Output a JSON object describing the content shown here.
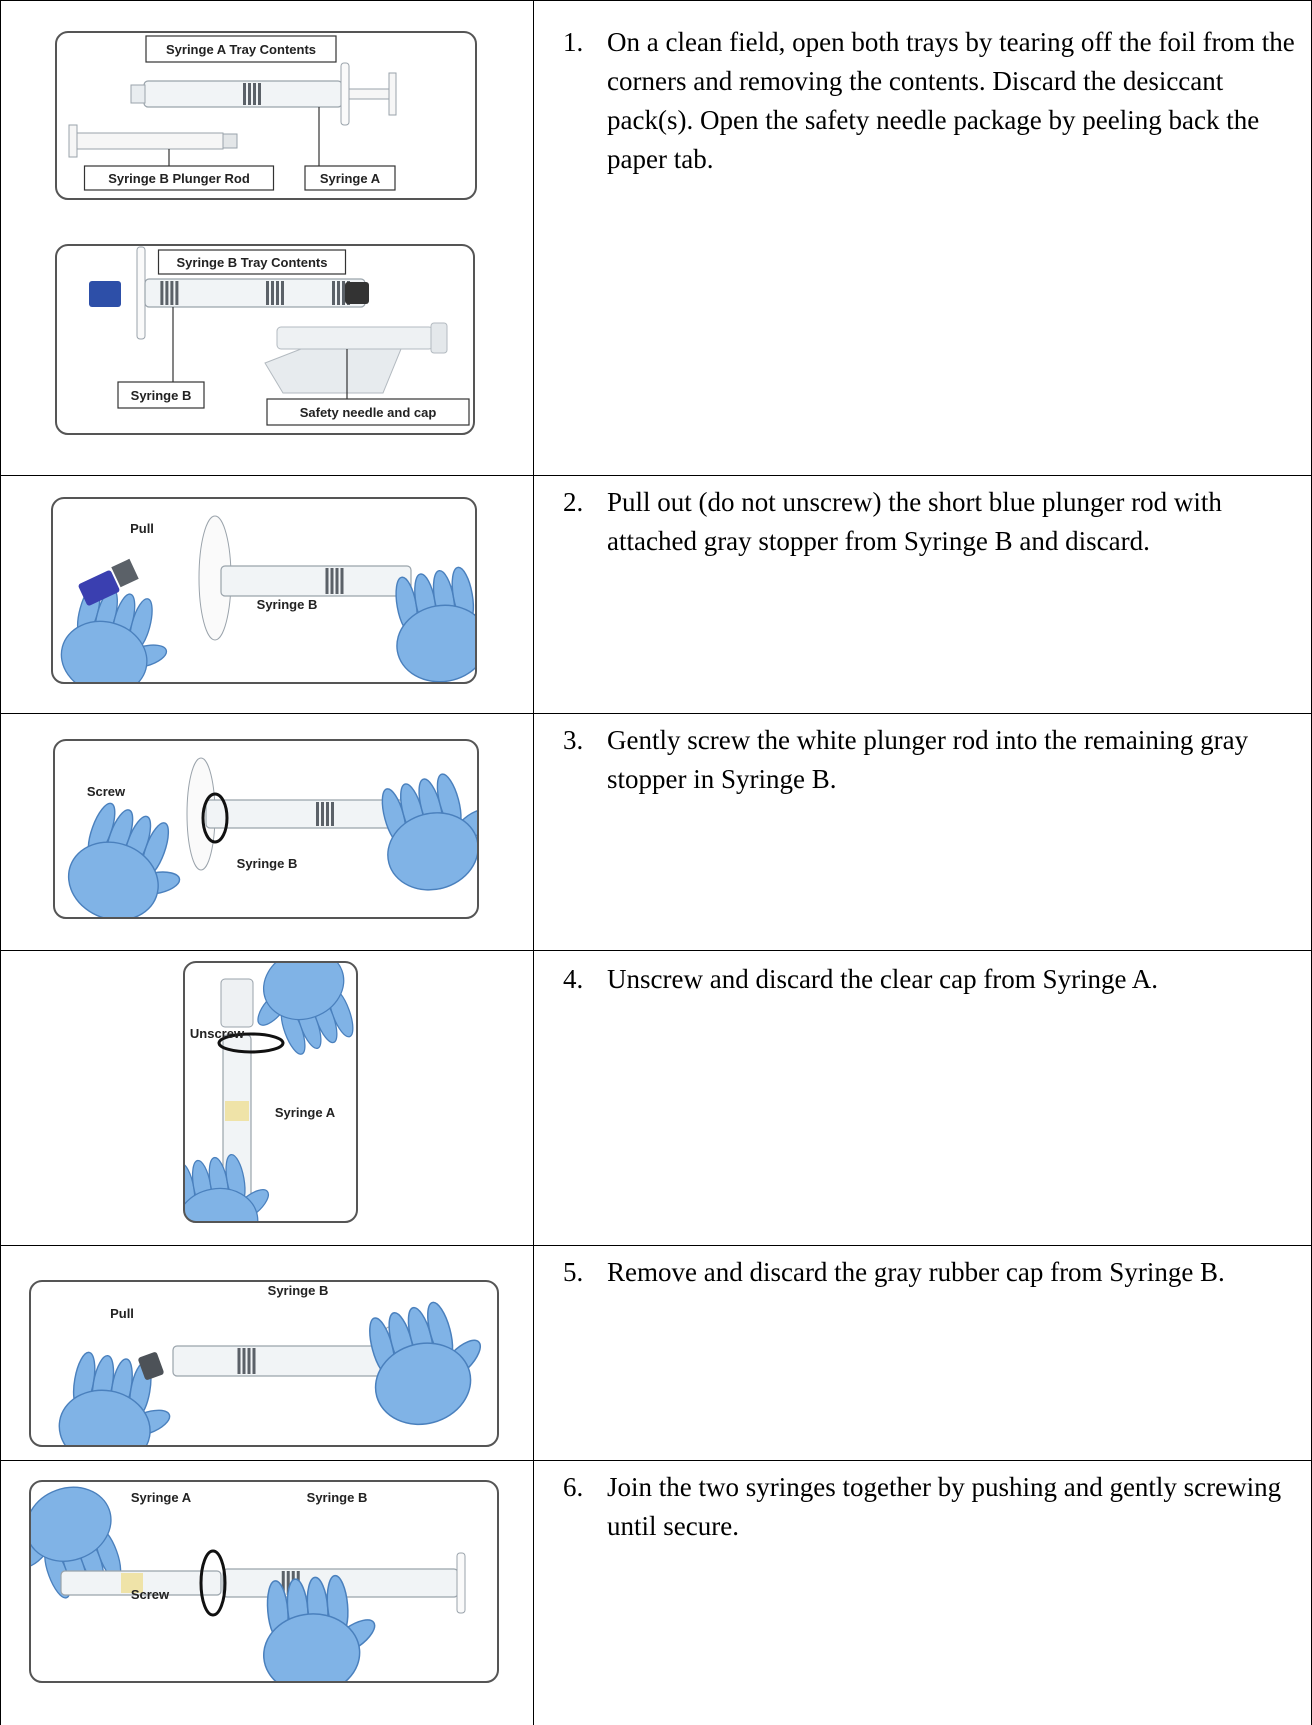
{
  "steps": [
    {
      "number": "1.",
      "text": "On a clean field, open both trays by tearing off the foil from the corners and removing the contents. Discard the desiccant pack(s). Open the safety needle package by peeling back the paper tab.",
      "image_labels": [
        "Syringe A Tray Contents",
        "Syringe B Plunger Rod",
        "Syringe A",
        "Syringe B Tray Contents",
        "Syringe B",
        "Safety needle and cap"
      ]
    },
    {
      "number": "2.",
      "text": "Pull out (do not unscrew) the short blue plunger rod with attached gray stopper from Syringe B and discard.",
      "image_labels": [
        "Pull",
        "Syringe B"
      ]
    },
    {
      "number": "3.",
      "text": "Gently screw the white plunger rod into the remaining gray stopper in Syringe B.",
      "image_labels": [
        "Screw",
        "Syringe B"
      ]
    },
    {
      "number": "4.",
      "text": "Unscrew and discard the clear cap from Syringe A.",
      "image_labels": [
        "Unscrew",
        "Syringe A"
      ]
    },
    {
      "number": "5.",
      "text": "Remove and discard the gray rubber cap from Syringe B.",
      "image_labels": [
        "Syringe B",
        "Pull"
      ]
    },
    {
      "number": "6.",
      "text": "Join the two syringes together by pushing and gently screwing until secure.",
      "image_labels": [
        "Syringe A",
        "Syringe B",
        "Screw"
      ]
    }
  ]
}
